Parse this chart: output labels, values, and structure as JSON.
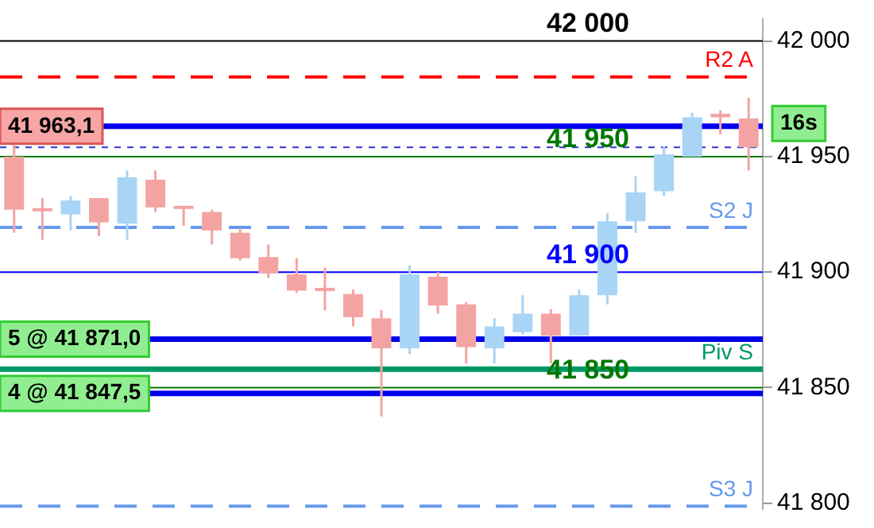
{
  "chart_data": {
    "type": "candlestick",
    "categories": [
      null,
      null,
      null,
      null,
      null,
      null,
      null,
      null,
      null,
      null,
      null,
      null,
      null,
      null,
      null,
      null,
      null,
      null,
      null,
      null,
      null,
      null,
      null,
      null,
      null,
      null,
      null
    ],
    "ohlc": [
      [
        41950,
        41955,
        41917,
        41927
      ],
      [
        41927,
        41932,
        41914,
        41926
      ],
      [
        41925,
        41933,
        41918,
        41931
      ],
      [
        41932,
        41932,
        41915.5,
        41921.5
      ],
      [
        41921,
        41944,
        41914,
        41941
      ],
      [
        41940,
        41944,
        41926,
        41928
      ],
      [
        41928,
        41928,
        41920,
        41927
      ],
      [
        41926,
        41927,
        41912,
        41918
      ],
      [
        41917,
        41919,
        41905,
        41906
      ],
      [
        41906.5,
        41912,
        41897.5,
        41899.5
      ],
      [
        41899,
        41906,
        41891,
        41892
      ],
      [
        41892.5,
        41902,
        41883.5,
        41891.5
      ],
      [
        41890.5,
        41892.5,
        41876.5,
        41880.5
      ],
      [
        41880,
        41883.5,
        41837.5,
        41867
      ],
      [
        41867,
        41903,
        41864.5,
        41899
      ],
      [
        41898,
        41900,
        41882,
        41885.5
      ],
      [
        41886,
        41887,
        41860.5,
        41867.5
      ],
      [
        41867,
        41880,
        41860.5,
        41876.5
      ],
      [
        41874,
        41890,
        41873,
        41882
      ],
      [
        41882,
        41884,
        41860.5,
        41872.5
      ],
      [
        41872.5,
        41892.5,
        41872.5,
        41890
      ],
      [
        41890,
        41925.5,
        41886,
        41922
      ],
      [
        41922,
        41941.5,
        41917,
        41934.5
      ],
      [
        41935,
        41954.5,
        41933,
        41951
      ],
      [
        41950,
        41969,
        41950,
        41967
      ],
      [
        41968.5,
        41970,
        41959.5,
        41967
      ],
      [
        41966.5,
        41975.5,
        41944,
        41954
      ]
    ],
    "colors": [
      "#f4a3a3",
      "#f4a3a3",
      "#a8d4f5",
      "#f4a3a3",
      "#a8d4f5",
      "#f4a3a3",
      "#f4a3a3",
      "#f4a3a3",
      "#f4a3a3",
      "#f4a3a3",
      "#f4a3a3",
      "#f4a3a3",
      "#f4a3a3",
      "#f4a3a3",
      "#a8d4f5",
      "#f4a3a3",
      "#f4a3a3",
      "#a8d4f5",
      "#a8d4f5",
      "#f4a3a3",
      "#a8d4f5",
      "#a8d4f5",
      "#a8d4f5",
      "#a8d4f5",
      "#a8d4f5",
      "#f4a3a3",
      "#f4a3a3"
    ],
    "ylim": [
      41797.5,
      42009.5
    ],
    "yticks": [
      {
        "value": 42000,
        "label": "42 000"
      },
      {
        "value": 41950,
        "label": "41 950"
      },
      {
        "value": 41900,
        "label": "41 900"
      },
      {
        "value": 41850,
        "label": "41 850"
      },
      {
        "value": 41800,
        "label": "41 800"
      }
    ],
    "grid": false,
    "legend": false,
    "tick_labels": "y",
    "ref_lines": [
      {
        "axis": "y",
        "value": 42000,
        "label": "42 000",
        "color": "#000000",
        "line_style": "solid"
      },
      {
        "axis": "y",
        "value": 41984.5,
        "label": "R2 A",
        "color": "#ff0000",
        "line_style": "dashed"
      },
      {
        "axis": "y",
        "value": 41963.1,
        "color": "#0000ee",
        "line_style": "solid"
      },
      {
        "axis": "y",
        "value": 41954,
        "color": "#3333cc",
        "line_style": "dotted"
      },
      {
        "axis": "y",
        "value": 41950,
        "label": "41 950",
        "color": "#007700",
        "line_style": "solid"
      },
      {
        "axis": "y",
        "value": 41919.3,
        "label": "S2 J",
        "color": "#6699ee",
        "line_style": "dashed"
      },
      {
        "axis": "y",
        "value": 41900,
        "label": "41 900",
        "color": "#0000ff",
        "line_style": "solid"
      },
      {
        "axis": "y",
        "value": 41871,
        "color": "#0000ee",
        "line_style": "solid"
      },
      {
        "axis": "y",
        "value": 41858,
        "label": "Piv S",
        "color": "#009966",
        "line_style": "solid"
      },
      {
        "axis": "y",
        "value": 41850,
        "label": "41 850",
        "color": "#007700",
        "line_style": "solid"
      },
      {
        "axis": "y",
        "value": 41847.5,
        "color": "#0000ee",
        "line_style": "solid"
      },
      {
        "axis": "y",
        "value": 41798.7,
        "label": "S3 J",
        "color": "#6699ee",
        "line_style": "dashed"
      }
    ],
    "annotations": [
      {
        "text": "41 963,1",
        "y": 41963.1
      },
      {
        "text": "5 @ 41 871,0",
        "y": 41871
      },
      {
        "text": "4 @ 41 847,5",
        "y": 41847.5
      },
      "16s"
    ]
  }
}
